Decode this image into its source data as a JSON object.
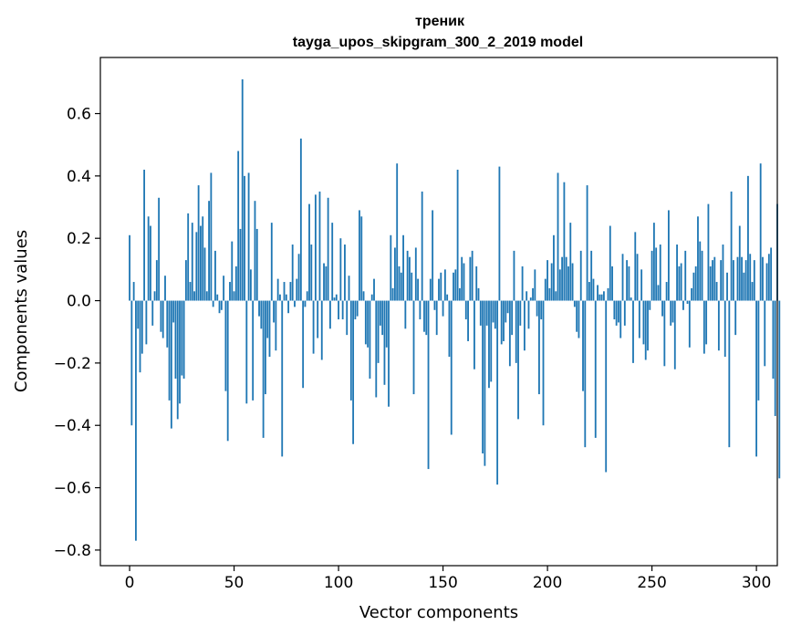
{
  "chart_data": {
    "type": "bar",
    "title_line1": "треник",
    "title_line2": "tayga_upos_skipgram_300_2_2019 model",
    "xlabel": "Vector components",
    "ylabel": "Components values",
    "xlim": [
      -14,
      310
    ],
    "ylim": [
      -0.85,
      0.78
    ],
    "xticks": [
      0,
      50,
      100,
      150,
      200,
      250,
      300
    ],
    "xtick_labels": [
      "0",
      "50",
      "100",
      "150",
      "200",
      "250",
      "300"
    ],
    "yticks": [
      -0.8,
      -0.6,
      -0.4,
      -0.2,
      0.0,
      0.2,
      0.4,
      0.6
    ],
    "ytick_labels": [
      "−0.8",
      "−0.6",
      "−0.4",
      "−0.2",
      "0.0",
      "0.2",
      "0.4",
      "0.6"
    ],
    "bar_color": "#1f77b4",
    "values": [
      0.21,
      -0.4,
      0.06,
      -0.77,
      -0.09,
      -0.23,
      -0.17,
      0.42,
      -0.14,
      0.27,
      0.24,
      -0.08,
      0.03,
      0.13,
      0.33,
      -0.1,
      -0.12,
      0.08,
      -0.15,
      -0.32,
      -0.41,
      -0.07,
      -0.25,
      -0.38,
      -0.33,
      -0.24,
      -0.25,
      0.13,
      0.28,
      0.06,
      0.25,
      0.03,
      0.22,
      0.37,
      0.24,
      0.27,
      0.17,
      0.03,
      0.32,
      0.41,
      -0.02,
      0.16,
      0.02,
      -0.04,
      -0.03,
      0.08,
      -0.29,
      -0.45,
      0.06,
      0.19,
      0.03,
      0.11,
      0.48,
      0.23,
      0.71,
      0.4,
      -0.33,
      0.41,
      0.1,
      -0.32,
      0.32,
      0.23,
      -0.05,
      -0.09,
      -0.44,
      -0.3,
      -0.12,
      -0.18,
      0.25,
      -0.07,
      -0.16,
      0.07,
      0.02,
      -0.5,
      0.06,
      0.02,
      -0.04,
      0.06,
      0.18,
      -0.02,
      0.07,
      0.15,
      0.52,
      -0.28,
      -0.02,
      0.03,
      0.31,
      0.18,
      -0.17,
      0.34,
      -0.12,
      0.35,
      -0.19,
      0.12,
      0.11,
      0.33,
      -0.09,
      0.25,
      0.01,
      0.02,
      -0.06,
      0.2,
      -0.06,
      0.18,
      -0.11,
      0.08,
      -0.32,
      -0.46,
      -0.06,
      -0.05,
      0.29,
      0.27,
      0.03,
      -0.14,
      -0.15,
      -0.25,
      0.02,
      0.07,
      -0.31,
      -0.2,
      -0.08,
      -0.11,
      -0.27,
      -0.15,
      -0.34,
      0.21,
      0.04,
      0.17,
      0.44,
      0.11,
      0.09,
      0.21,
      -0.09,
      0.16,
      0.14,
      0.09,
      -0.3,
      0.17,
      0.07,
      -0.06,
      0.35,
      -0.1,
      -0.11,
      -0.54,
      0.07,
      0.29,
      -0.03,
      -0.11,
      0.07,
      0.09,
      -0.05,
      0.1,
      0.02,
      -0.18,
      -0.43,
      0.09,
      0.1,
      0.42,
      0.04,
      0.14,
      0.12,
      -0.06,
      -0.13,
      0.14,
      0.16,
      -0.22,
      0.11,
      0.04,
      -0.08,
      -0.49,
      -0.53,
      -0.08,
      -0.28,
      -0.26,
      -0.07,
      -0.09,
      -0.59,
      0.43,
      -0.14,
      -0.13,
      -0.07,
      -0.04,
      -0.21,
      -0.11,
      0.16,
      -0.2,
      -0.38,
      -0.08,
      0.11,
      -0.16,
      0.03,
      -0.09,
      0.01,
      0.04,
      0.1,
      -0.05,
      -0.3,
      -0.06,
      -0.4,
      0.07,
      0.13,
      0.04,
      0.12,
      0.21,
      0.03,
      0.41,
      0.1,
      0.14,
      0.38,
      0.14,
      0.11,
      0.25,
      0.12,
      -0.02,
      -0.1,
      -0.12,
      0.16,
      -0.29,
      -0.47,
      0.37,
      0.06,
      0.16,
      0.07,
      -0.44,
      0.05,
      0.02,
      0.02,
      0.03,
      -0.55,
      0.04,
      0.24,
      0.11,
      -0.06,
      -0.08,
      -0.07,
      -0.12,
      0.15,
      -0.08,
      0.13,
      0.11,
      0.01,
      -0.2,
      0.22,
      0.15,
      -0.12,
      0.1,
      -0.14,
      -0.19,
      -0.16,
      -0.03,
      0.16,
      0.25,
      0.17,
      0.05,
      0.18,
      -0.05,
      -0.21,
      0.06,
      0.29,
      -0.08,
      -0.07,
      -0.22,
      0.18,
      0.11,
      0.12,
      -0.03,
      0.16,
      -0.01,
      -0.15,
      0.04,
      0.09,
      0.11,
      0.27,
      0.19,
      0.16,
      -0.17,
      -0.14,
      0.31,
      0.11,
      0.13,
      0.14,
      0.06,
      -0.16,
      0.13,
      0.18,
      -0.18,
      0.09,
      -0.47,
      0.35,
      0.13,
      -0.11,
      0.14,
      0.24,
      0.14,
      0.09,
      0.13,
      0.4,
      0.15,
      0.06,
      0.13,
      -0.5,
      -0.32,
      0.44,
      0.14,
      -0.21,
      0.12,
      0.15,
      0.17,
      -0.25,
      -0.37,
      0.31,
      -0.57
    ]
  }
}
